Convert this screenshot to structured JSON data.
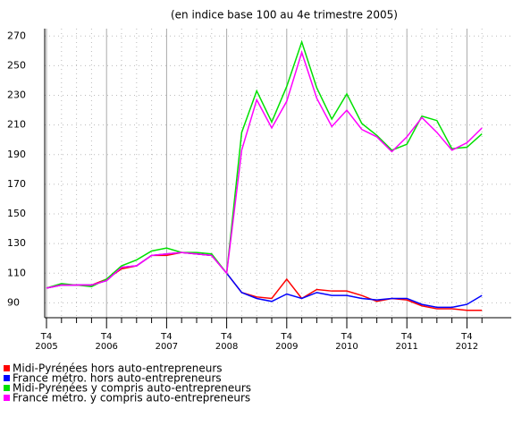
{
  "chart_data": {
    "type": "line",
    "title": "(en indice base 100 au 4e trimestre 2005)",
    "categories": [
      [
        "T4",
        "2005"
      ],
      null,
      null,
      null,
      [
        "T4",
        "2006"
      ],
      null,
      null,
      null,
      [
        "T4",
        "2007"
      ],
      null,
      null,
      null,
      [
        "T4",
        "2008"
      ],
      null,
      null,
      null,
      [
        "T4",
        "2009"
      ],
      null,
      null,
      null,
      [
        "T4",
        "2010"
      ],
      null,
      null,
      null,
      [
        "T4",
        "2011"
      ],
      null,
      null,
      null,
      [
        "T4",
        "2012"
      ],
      null
    ],
    "series": [
      {
        "name": "Midi-Pyrénées hors auto-entrepreneurs",
        "color": "#ff0000",
        "values": [
          100,
          102,
          102,
          102,
          106,
          113,
          115,
          122,
          122,
          124,
          123,
          122,
          110,
          97,
          94,
          93,
          106,
          93,
          99,
          98,
          98,
          95,
          91,
          93,
          92,
          88,
          86,
          86,
          85,
          85
        ]
      },
      {
        "name": "France métro. hors auto-entrepreneurs",
        "color": "#0000ff",
        "values": [
          100,
          102,
          102,
          102,
          105,
          114,
          115,
          122,
          123,
          124,
          123,
          122,
          110,
          97,
          93,
          91,
          96,
          93,
          97,
          95,
          95,
          93,
          92,
          93,
          93,
          89,
          87,
          87,
          89,
          95
        ]
      },
      {
        "name": "Midi-Pyrénées y compris auto-entrepreneurs",
        "color": "#00e000",
        "values": [
          100,
          103,
          102,
          101,
          106,
          115,
          119,
          125,
          127,
          124,
          124,
          123,
          110,
          205,
          233,
          212,
          236,
          266,
          235,
          214,
          231,
          211,
          203,
          193,
          197,
          216,
          213,
          194,
          195,
          204
        ]
      },
      {
        "name": "France métro. y compris auto-entrepreneurs",
        "color": "#ff00ff",
        "values": [
          100,
          102,
          102,
          102,
          105,
          114,
          115,
          122,
          123,
          124,
          123,
          122,
          110,
          193,
          227,
          208,
          226,
          259,
          228,
          209,
          220,
          207,
          202,
          192,
          202,
          215,
          205,
          193,
          198,
          208
        ]
      }
    ],
    "ylim": [
      80,
      275
    ],
    "yticks": [
      90,
      110,
      130,
      150,
      170,
      190,
      210,
      230,
      250,
      270
    ],
    "grid": true
  }
}
